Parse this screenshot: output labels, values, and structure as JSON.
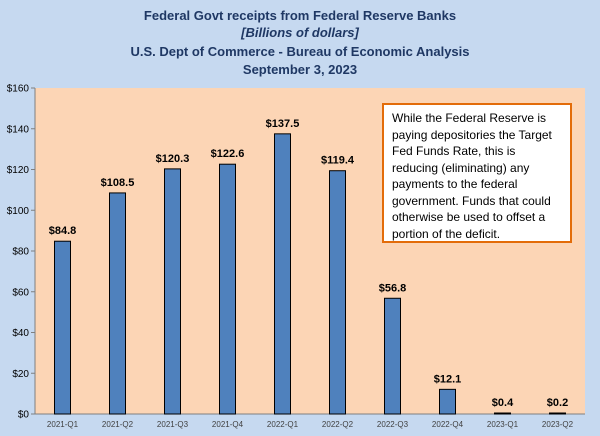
{
  "title_lines": [
    "Federal Govt receipts from Federal Reserve Banks",
    "[Billions of dollars]",
    "U.S. Dept of Commerce - Bureau of Economic Analysis",
    "September 3, 2023"
  ],
  "annotation": "While the Federal Reserve is paying depositories the Target Fed Funds Rate, this is reducing (eliminating) any payments to the federal government.  Funds that could otherwise be used to offset a portion of the deficit.",
  "colors": {
    "background": "#c6d9f0",
    "plot_area": "#fcd5b5",
    "bar_fill": "#4f81bd",
    "bar_outline": "#000000",
    "title": "#1f3864",
    "annotation_border": "#e36c09"
  },
  "chart_data": {
    "type": "bar",
    "title": "Federal Govt receipts from Federal Reserve Banks",
    "subtitle": "[Billions of dollars]",
    "categories": [
      "2021-Q1",
      "2021-Q2",
      "2021-Q3",
      "2021-Q4",
      "2022-Q1",
      "2022-Q2",
      "2022-Q3",
      "2022-Q4",
      "2023-Q1",
      "2023-Q2"
    ],
    "values": [
      84.8,
      108.5,
      120.3,
      122.6,
      137.5,
      119.4,
      56.8,
      12.1,
      0.4,
      0.2
    ],
    "data_labels": [
      "$84.8",
      "$108.5",
      "$120.3",
      "$122.6",
      "$137.5",
      "$119.4",
      "$56.8",
      "$12.1",
      "$0.4",
      "$0.2"
    ],
    "y_tick_labels": [
      "$0",
      "$20",
      "$40",
      "$60",
      "$80",
      "$100",
      "$120",
      "$140",
      "$160"
    ],
    "y_ticks": [
      0,
      20,
      40,
      60,
      80,
      100,
      120,
      140,
      160
    ],
    "ylim": [
      0,
      160
    ],
    "xlabel": "",
    "ylabel": "",
    "grid": false,
    "legend": "none"
  }
}
